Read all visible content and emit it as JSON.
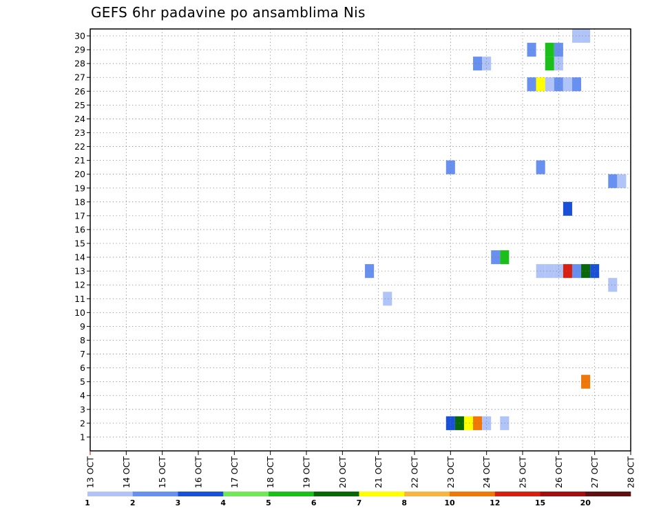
{
  "chart_data": {
    "type": "heatmap",
    "title": "GEFS 6hr padavine po ansamblima Nis",
    "x_labels": [
      "13 OCT",
      "14 OCT",
      "15 OCT",
      "16 OCT",
      "17 OCT",
      "18 OCT",
      "19 OCT",
      "20 OCT",
      "21 OCT",
      "22 OCT",
      "23 OCT",
      "24 OCT",
      "25 OCT",
      "26 OCT",
      "27 OCT",
      "28 OCT"
    ],
    "y_labels": [
      "1",
      "2",
      "3",
      "4",
      "5",
      "6",
      "7",
      "8",
      "9",
      "10",
      "11",
      "12",
      "13",
      "14",
      "15",
      "16",
      "17",
      "18",
      "19",
      "20",
      "21",
      "22",
      "23",
      "24",
      "25",
      "26",
      "27",
      "28",
      "29",
      "30"
    ],
    "grid": true,
    "legend": {
      "placement": "bottom",
      "labels": [
        "1",
        "2",
        "3",
        "4",
        "5",
        "6",
        "7",
        "8",
        "10",
        "12",
        "15",
        "20"
      ],
      "colors": [
        "#b0c4f8",
        "#6890f0",
        "#1850d8",
        "#70e858",
        "#18c018",
        "#086808",
        "#ffff00",
        "#f8b440",
        "#f07808",
        "#d82010",
        "#a01010",
        "#601010"
      ]
    },
    "cells": [
      {
        "member": 2,
        "day": 23.0,
        "value": 3
      },
      {
        "member": 2,
        "day": 23.25,
        "value": 6
      },
      {
        "member": 2,
        "day": 23.5,
        "value": 7
      },
      {
        "member": 2,
        "day": 23.75,
        "value": 10
      },
      {
        "member": 2,
        "day": 24.0,
        "value": 1
      },
      {
        "member": 2,
        "day": 24.5,
        "value": 1
      },
      {
        "member": 5,
        "day": 26.75,
        "value": 10
      },
      {
        "member": 11,
        "day": 21.25,
        "value": 1
      },
      {
        "member": 12,
        "day": 27.5,
        "value": 1
      },
      {
        "member": 13,
        "day": 20.75,
        "value": 2
      },
      {
        "member": 13,
        "day": 25.5,
        "value": 1
      },
      {
        "member": 13,
        "day": 25.75,
        "value": 1
      },
      {
        "member": 13,
        "day": 26.0,
        "value": 1
      },
      {
        "member": 13,
        "day": 26.25,
        "value": 12
      },
      {
        "member": 13,
        "day": 26.5,
        "value": 2
      },
      {
        "member": 13,
        "day": 26.75,
        "value": 6
      },
      {
        "member": 13,
        "day": 27.0,
        "value": 3
      },
      {
        "member": 14,
        "day": 24.25,
        "value": 2
      },
      {
        "member": 14,
        "day": 24.5,
        "value": 5
      },
      {
        "member": 17.5,
        "day": 26.25,
        "value": 3
      },
      {
        "member": 19.5,
        "day": 27.5,
        "value": 2
      },
      {
        "member": 19.5,
        "day": 27.75,
        "value": 1
      },
      {
        "member": 20.5,
        "day": 23.0,
        "value": 2
      },
      {
        "member": 20.5,
        "day": 25.5,
        "value": 2
      },
      {
        "member": 26.5,
        "day": 25.25,
        "value": 2
      },
      {
        "member": 26.5,
        "day": 25.5,
        "value": 7
      },
      {
        "member": 26.5,
        "day": 25.75,
        "value": 1
      },
      {
        "member": 26.5,
        "day": 26.0,
        "value": 2
      },
      {
        "member": 26.5,
        "day": 26.25,
        "value": 1
      },
      {
        "member": 26.5,
        "day": 26.5,
        "value": 2
      },
      {
        "member": 28,
        "day": 23.75,
        "value": 2
      },
      {
        "member": 28,
        "day": 24.0,
        "value": 1
      },
      {
        "member": 28,
        "day": 25.75,
        "value": 5
      },
      {
        "member": 28,
        "day": 26.0,
        "value": 1
      },
      {
        "member": 29,
        "day": 25.25,
        "value": 2
      },
      {
        "member": 29,
        "day": 25.75,
        "value": 5
      },
      {
        "member": 29,
        "day": 26.0,
        "value": 2
      },
      {
        "member": 30,
        "day": 26.5,
        "value": 1
      },
      {
        "member": 30,
        "day": 26.75,
        "value": 1
      }
    ]
  }
}
